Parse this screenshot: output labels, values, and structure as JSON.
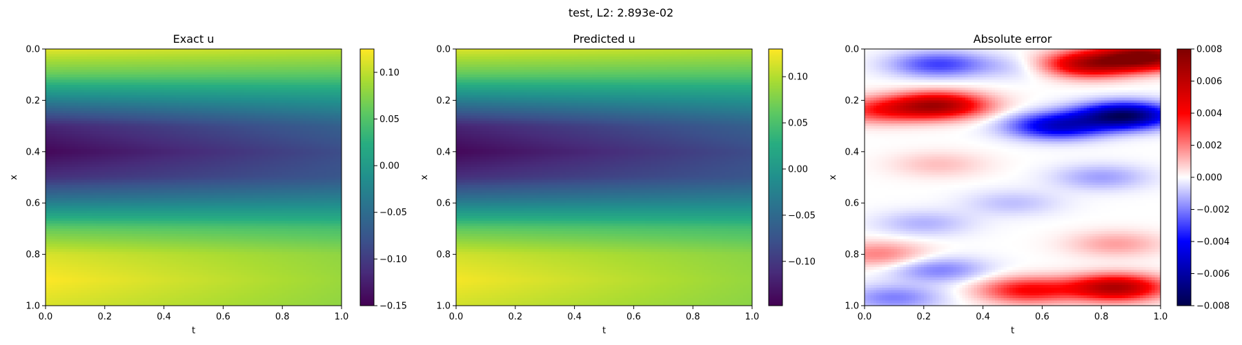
{
  "suptitle": "test, L2: 2.893e-02",
  "chart_data": [
    {
      "type": "heatmap",
      "title": "Exact u",
      "xlabel": "t",
      "ylabel": "x",
      "xlim": [
        0.0,
        1.0
      ],
      "ylim": [
        1.0,
        0.0
      ],
      "xticks": [
        "0.0",
        "0.2",
        "0.4",
        "0.6",
        "0.8",
        "1.0"
      ],
      "yticks": [
        "0.0",
        "0.2",
        "0.4",
        "0.6",
        "0.8",
        "1.0"
      ],
      "colormap": "viridis",
      "colorbar": {
        "range": [
          -0.15,
          0.125
        ],
        "ticks": [
          -0.15,
          -0.1,
          -0.05,
          0.0,
          0.05,
          0.1
        ],
        "tick_labels": [
          "−0.15",
          "−0.10",
          "−0.05",
          "0.00",
          "0.05",
          "0.10"
        ]
      },
      "profile_x": [
        0.0,
        0.1,
        0.2,
        0.3,
        0.4,
        0.5,
        0.6,
        0.7,
        0.8,
        0.9,
        1.0
      ],
      "profile_u_t0": [
        0.115,
        0.06,
        -0.03,
        -0.12,
        -0.145,
        -0.11,
        -0.03,
        0.06,
        0.11,
        0.125,
        0.11
      ],
      "profile_u_t1": [
        0.1,
        0.055,
        -0.01,
        -0.065,
        -0.085,
        -0.075,
        -0.02,
        0.045,
        0.08,
        0.085,
        0.08
      ]
    },
    {
      "type": "heatmap",
      "title": "Predicted u",
      "xlabel": "t",
      "ylabel": "x",
      "xlim": [
        0.0,
        1.0
      ],
      "ylim": [
        1.0,
        0.0
      ],
      "xticks": [
        "0.0",
        "0.2",
        "0.4",
        "0.6",
        "0.8",
        "1.0"
      ],
      "yticks": [
        "0.0",
        "0.2",
        "0.4",
        "0.6",
        "0.8",
        "1.0"
      ],
      "colormap": "viridis",
      "colorbar": {
        "range": [
          -0.148,
          0.13
        ],
        "ticks": [
          -0.1,
          -0.05,
          0.0,
          0.05,
          0.1
        ],
        "tick_labels": [
          "−0.10",
          "−0.05",
          "0.00",
          "0.05",
          "0.10"
        ]
      },
      "profile_x": [
        0.0,
        0.1,
        0.2,
        0.3,
        0.4,
        0.5,
        0.6,
        0.7,
        0.8,
        0.9,
        1.0
      ],
      "profile_u_t0": [
        0.117,
        0.062,
        -0.028,
        -0.118,
        -0.143,
        -0.108,
        -0.028,
        0.062,
        0.112,
        0.127,
        0.112
      ],
      "profile_u_t1": [
        0.102,
        0.057,
        -0.008,
        -0.063,
        -0.083,
        -0.073,
        -0.018,
        0.047,
        0.082,
        0.087,
        0.082
      ]
    },
    {
      "type": "heatmap",
      "title": "Absolute error",
      "xlabel": "t",
      "ylabel": "x",
      "xlim": [
        0.0,
        1.0
      ],
      "ylim": [
        1.0,
        0.0
      ],
      "xticks": [
        "0.0",
        "0.2",
        "0.4",
        "0.6",
        "0.8",
        "1.0"
      ],
      "yticks": [
        "0.0",
        "0.2",
        "0.4",
        "0.6",
        "0.8",
        "1.0"
      ],
      "colormap": "seismic",
      "colorbar": {
        "range": [
          -0.008,
          0.008
        ],
        "ticks": [
          -0.008,
          -0.006,
          -0.004,
          -0.002,
          0.0,
          0.002,
          0.004,
          0.006,
          0.008
        ],
        "tick_labels": [
          "−0.008",
          "−0.006",
          "−0.004",
          "−0.002",
          "0.000",
          "0.002",
          "0.004",
          "0.006",
          "0.008"
        ]
      },
      "error_blobs": [
        {
          "t": 0.95,
          "x": 0.03,
          "value": 0.008
        },
        {
          "t": 0.75,
          "x": 0.06,
          "value": 0.006
        },
        {
          "t": 0.25,
          "x": 0.06,
          "value": -0.003
        },
        {
          "t": 0.55,
          "x": 0.07,
          "value": -0.001
        },
        {
          "t": 0.25,
          "x": 0.22,
          "value": 0.0065
        },
        {
          "t": 0.05,
          "x": 0.24,
          "value": 0.003
        },
        {
          "t": 0.88,
          "x": 0.26,
          "value": -0.0075
        },
        {
          "t": 0.65,
          "x": 0.3,
          "value": -0.005
        },
        {
          "t": 0.25,
          "x": 0.45,
          "value": 0.001
        },
        {
          "t": 0.8,
          "x": 0.5,
          "value": -0.0015
        },
        {
          "t": 0.5,
          "x": 0.6,
          "value": -0.001
        },
        {
          "t": 0.2,
          "x": 0.68,
          "value": -0.0012
        },
        {
          "t": 0.85,
          "x": 0.76,
          "value": 0.0015
        },
        {
          "t": 0.05,
          "x": 0.8,
          "value": 0.002
        },
        {
          "t": 0.25,
          "x": 0.86,
          "value": -0.002
        },
        {
          "t": 0.85,
          "x": 0.93,
          "value": 0.0065
        },
        {
          "t": 0.1,
          "x": 0.97,
          "value": -0.002
        },
        {
          "t": 0.55,
          "x": 0.94,
          "value": 0.004
        }
      ]
    }
  ]
}
